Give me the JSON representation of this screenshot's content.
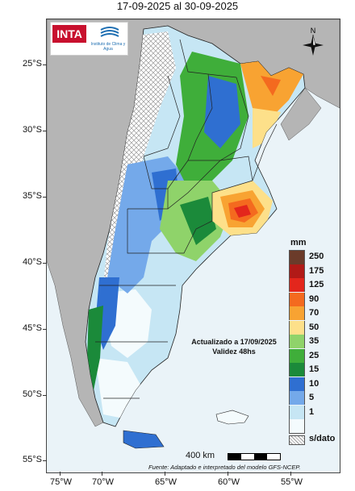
{
  "title": "17-09-2025 al 30-09-2025",
  "axes": {
    "y_labels": [
      "25°S",
      "30°S",
      "35°S",
      "40°S",
      "45°S",
      "50°S",
      "55°S"
    ],
    "x_labels": [
      "75°W",
      "70°W",
      "65°W",
      "60°W",
      "55°W"
    ]
  },
  "logo": {
    "org": "INTA",
    "partner": "Instituto de Clima y Agua"
  },
  "north_arrow": {
    "letter": "N",
    "icon": "compass-rose-icon"
  },
  "legend": {
    "unit": "mm",
    "classes": [
      {
        "label": "250",
        "color": "#6b3b2a"
      },
      {
        "label": "175",
        "color": "#b11a17"
      },
      {
        "label": "125",
        "color": "#e3261c"
      },
      {
        "label": "90",
        "color": "#f46a1f"
      },
      {
        "label": "70",
        "color": "#f8a332"
      },
      {
        "label": "50",
        "color": "#fde08a"
      },
      {
        "label": "35",
        "color": "#8fd36a"
      },
      {
        "label": "25",
        "color": "#3fae3a"
      },
      {
        "label": "15",
        "color": "#1b8a3a"
      },
      {
        "label": "10",
        "color": "#2f6fd1"
      },
      {
        "label": "5",
        "color": "#74a9ea"
      },
      {
        "label": "1",
        "color": "#c6e6f4"
      },
      {
        "label": "",
        "color": "#f4fbfd"
      }
    ],
    "no_data_label": "s/dato"
  },
  "annotation": {
    "line1": "Actualizado a 17/09/2025",
    "line2": "Validez 48hs"
  },
  "scale": {
    "label": "400 km"
  },
  "source": "Fuente: Adaptado e interpretado del modelo GFS-NCEP.",
  "colors": {
    "ocean": "#eaf3f8",
    "neighbor_land": "#b5b5b5",
    "border": "#222222"
  }
}
